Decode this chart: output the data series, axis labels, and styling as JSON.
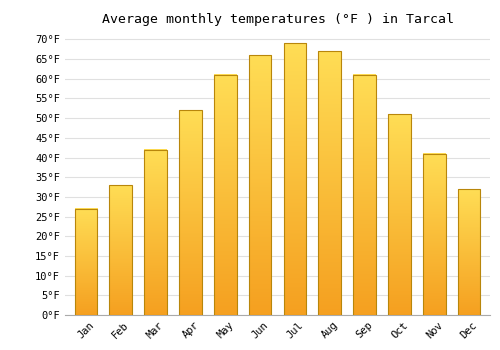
{
  "title": "Average monthly temperatures (°F ) in Tarcal",
  "months": [
    "Jan",
    "Feb",
    "Mar",
    "Apr",
    "May",
    "Jun",
    "Jul",
    "Aug",
    "Sep",
    "Oct",
    "Nov",
    "Dec"
  ],
  "values": [
    27,
    33,
    42,
    52,
    61,
    66,
    69,
    67,
    61,
    51,
    41,
    32
  ],
  "bar_color_top": "#FFDD55",
  "bar_color_bottom": "#F5A020",
  "bar_edge_color": "#B8860B",
  "background_color": "#FFFFFF",
  "grid_color": "#E0E0E0",
  "ylim": [
    0,
    72
  ],
  "yticks": [
    0,
    5,
    10,
    15,
    20,
    25,
    30,
    35,
    40,
    45,
    50,
    55,
    60,
    65,
    70
  ],
  "title_fontsize": 9.5,
  "tick_fontsize": 7.5,
  "bar_width": 0.65
}
